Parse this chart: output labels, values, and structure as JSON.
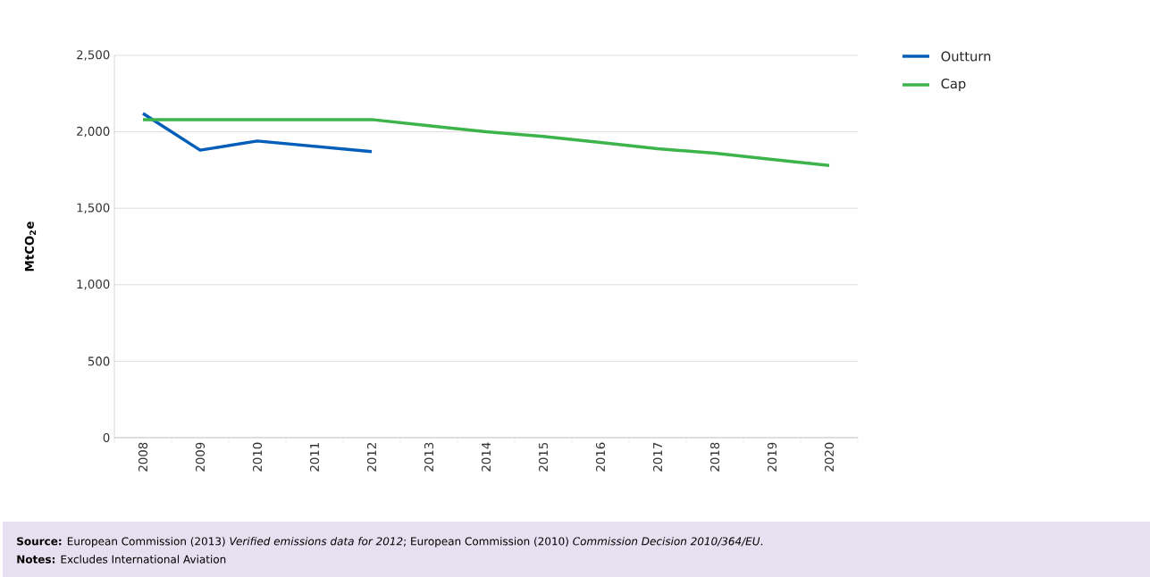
{
  "chart_data": {
    "type": "line",
    "ylabel": "MtCO$_{2}$e",
    "categories": [
      "2008",
      "2009",
      "2010",
      "2011",
      "2012",
      "2013",
      "2014",
      "2015",
      "2016",
      "2017",
      "2018",
      "2019",
      "2020"
    ],
    "series": [
      {
        "name": "Outturn",
        "color": "#005eb8",
        "values": [
          2120,
          1880,
          1940,
          1905,
          1870,
          null,
          null,
          null,
          null,
          null,
          null,
          null,
          null
        ]
      },
      {
        "name": "Cap",
        "color": "#3cb44b",
        "values": [
          2080,
          2080,
          2080,
          2080,
          2080,
          2040,
          2000,
          1970,
          1930,
          1890,
          1860,
          1820,
          1780
        ]
      }
    ],
    "ylim": [
      0,
      2500
    ],
    "yticks": [
      {
        "value": 0,
        "label": "0"
      },
      {
        "value": 500,
        "label": "500"
      },
      {
        "value": 1000,
        "label": "1,000"
      },
      {
        "value": 1500,
        "label": "1,500"
      },
      {
        "value": 2000,
        "label": "2,000"
      },
      {
        "value": 2500,
        "label": "2,500"
      }
    ],
    "grid": "y",
    "legend": "top right",
    "marker": "none",
    "line_style": "solid",
    "annotations": [
      "**Source:** European Commission (2013) *Verified emissions data for 2012*; European Commission (2010) *Commission Decision 2010/364/EU*.",
      "**Notes:** Excludes International Aviation"
    ]
  }
}
